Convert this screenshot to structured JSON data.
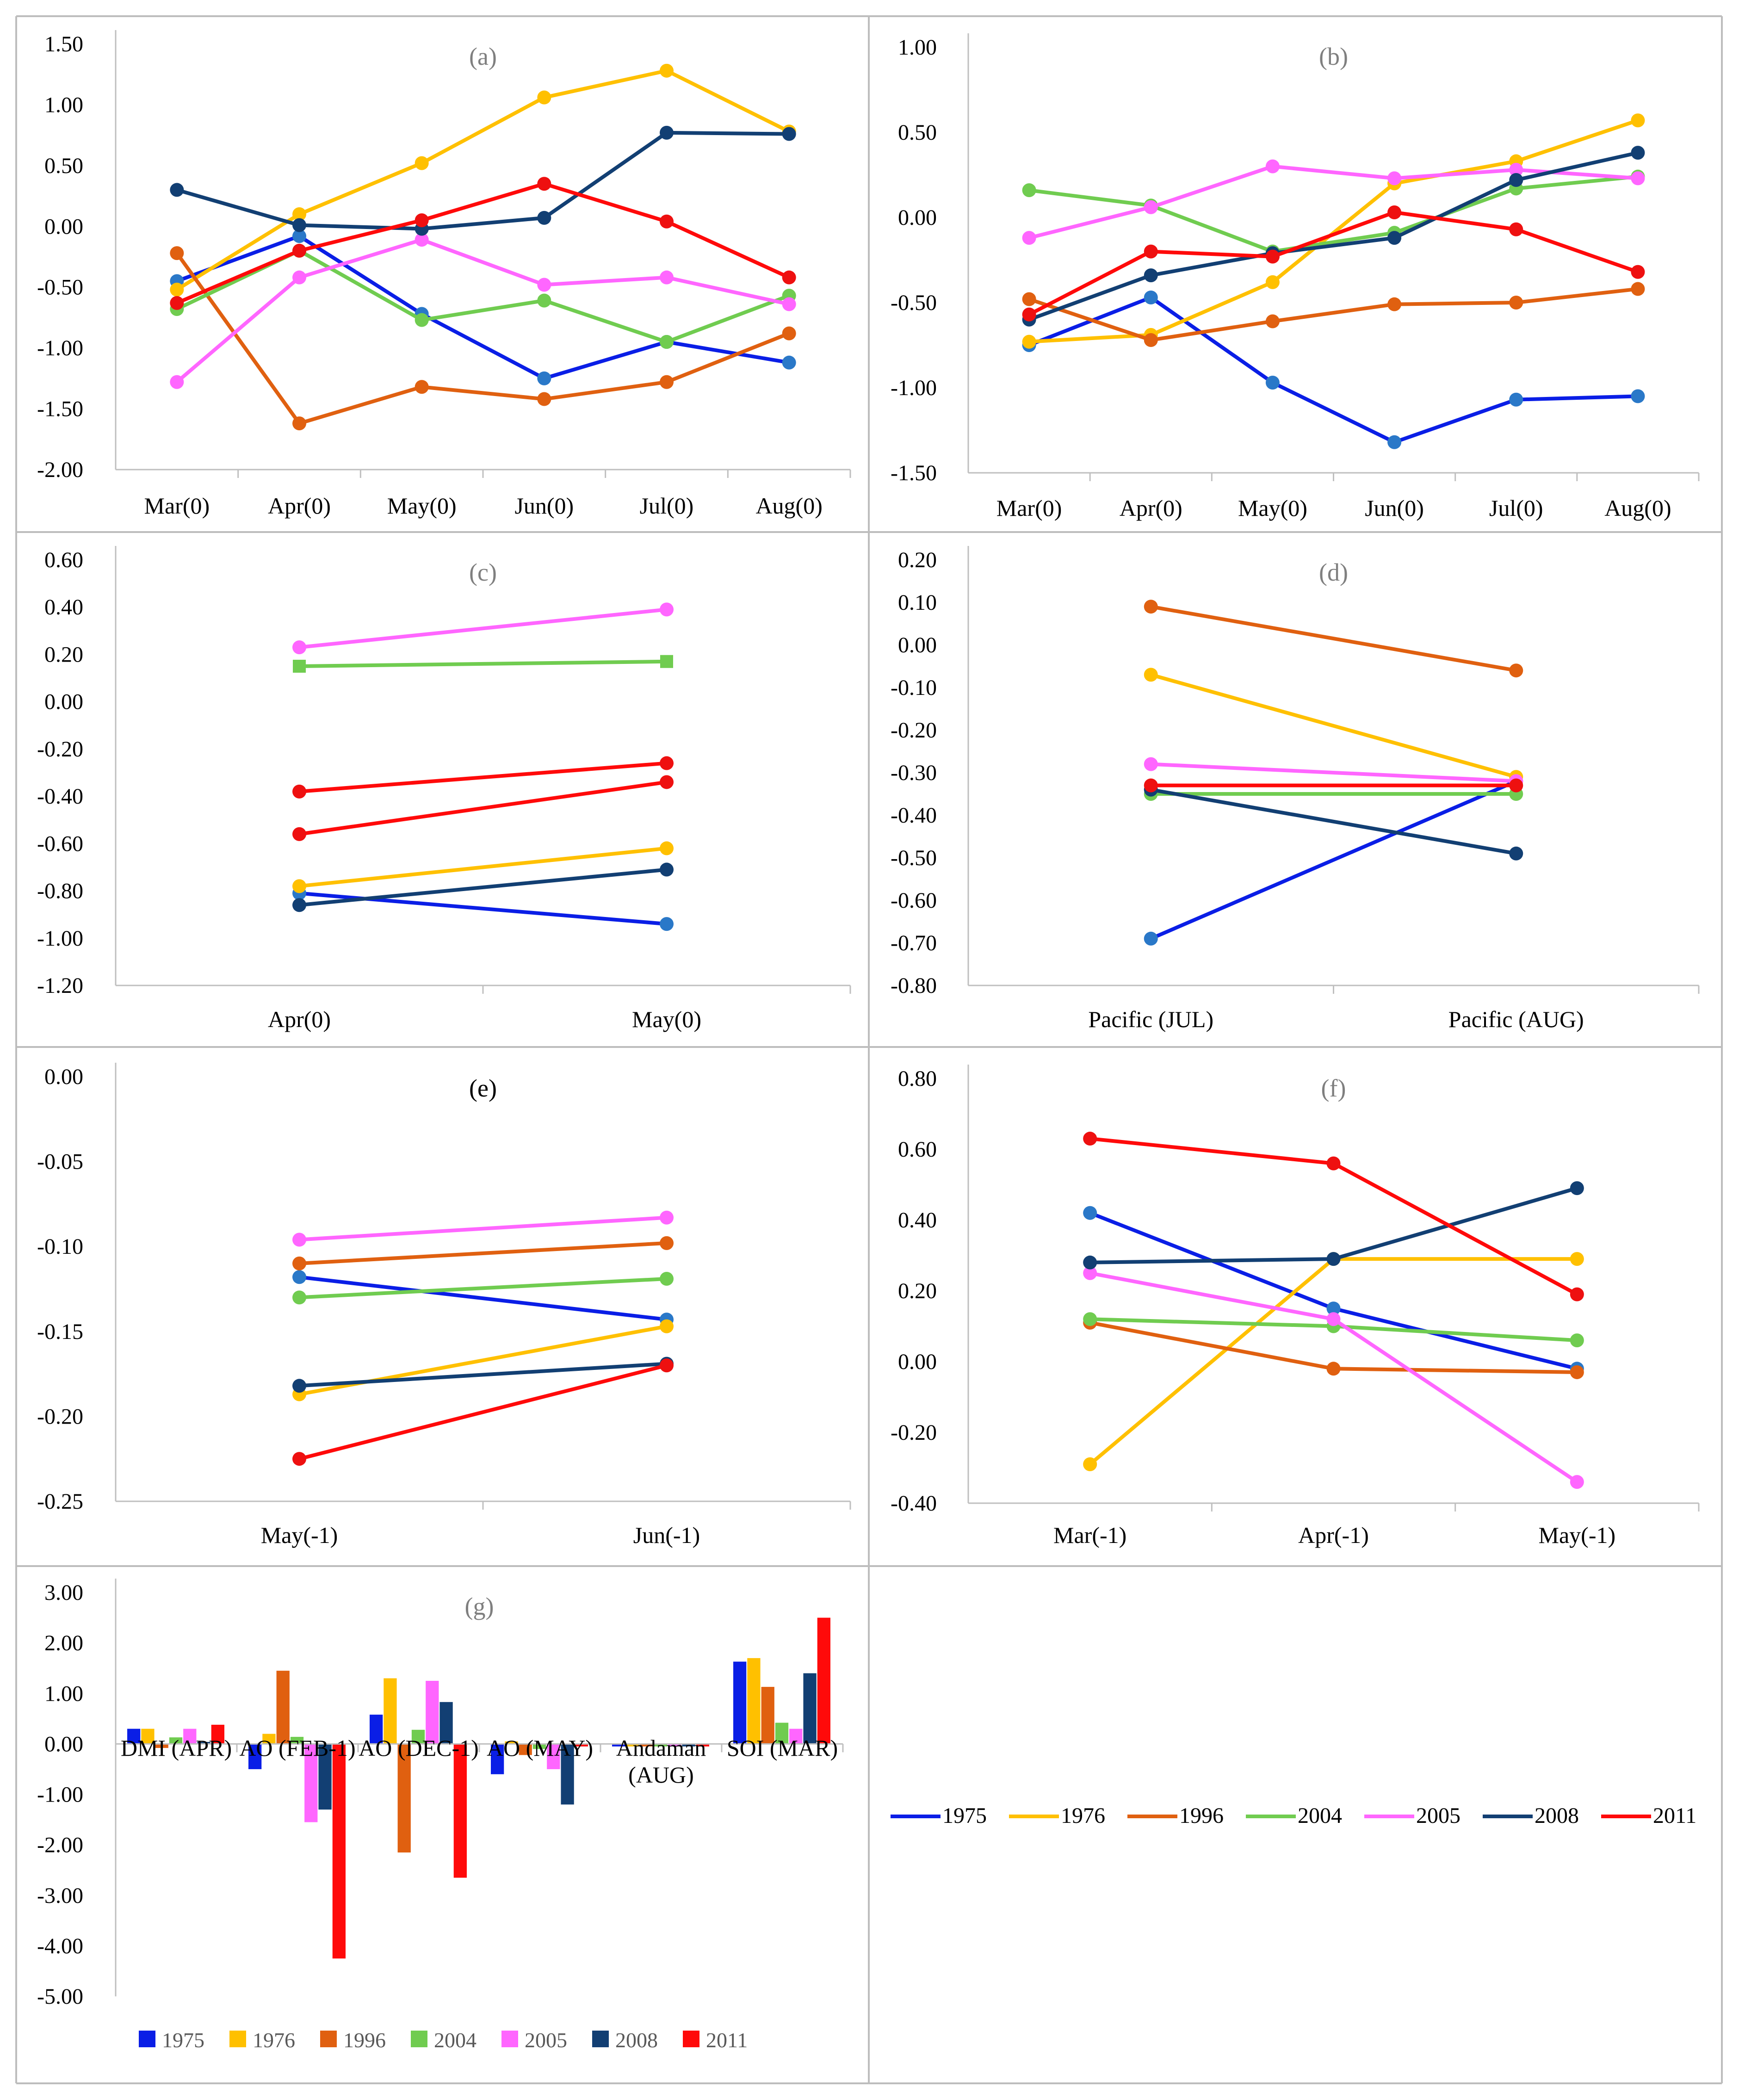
{
  "figure": {
    "colors": {
      "1975": "#0a1ee6",
      "1976": "#ffc000",
      "1996": "#e06010",
      "2004": "#70cc50",
      "2005": "#ff66ff",
      "2008": "#123f73",
      "2011": "#ff0a0a"
    },
    "marker_colors": {
      "1975": "#2a78c8",
      "1976": "#ffc000",
      "1996": "#e06010",
      "2004": "#70cc50",
      "2005": "#ff66ff",
      "2008": "#123f73",
      "2011": "#ee1010"
    },
    "shared_legend": {
      "entries": [
        "1975",
        "1976",
        "1996",
        "2004",
        "2005",
        "2008",
        "2011"
      ]
    }
  },
  "chart_data": [
    {
      "id": "a",
      "type": "line",
      "title": "(a)",
      "categories": [
        "Mar(0)",
        "Apr(0)",
        "May(0)",
        "Jun(0)",
        "Jul(0)",
        "Aug(0)"
      ],
      "ylim": [
        -2.0,
        1.5
      ],
      "yticks": [
        1.5,
        1.0,
        0.5,
        0.0,
        -0.5,
        -1.0,
        -1.5,
        -2.0
      ],
      "tick_labels": [
        "1.50",
        "1.00",
        "0.50",
        "0.00",
        "-0.50",
        "-1.00",
        "-1.50",
        "-2.00"
      ],
      "series": [
        {
          "name": "1975",
          "values": [
            -0.45,
            -0.08,
            -0.72,
            -1.25,
            -0.95,
            -1.12
          ]
        },
        {
          "name": "1976",
          "values": [
            -0.52,
            0.1,
            0.52,
            1.06,
            1.28,
            0.78
          ]
        },
        {
          "name": "1996",
          "values": [
            -0.22,
            -1.62,
            -1.32,
            -1.42,
            -1.28,
            -0.88
          ]
        },
        {
          "name": "2004",
          "values": [
            -0.68,
            -0.2,
            -0.77,
            -0.61,
            -0.95,
            -0.57
          ]
        },
        {
          "name": "2005",
          "values": [
            -1.28,
            -0.42,
            -0.11,
            -0.48,
            -0.42,
            -0.64
          ]
        },
        {
          "name": "2008",
          "values": [
            0.3,
            0.01,
            -0.02,
            0.07,
            0.77,
            0.76
          ]
        },
        {
          "name": "2011",
          "values": [
            -0.63,
            -0.2,
            0.05,
            0.35,
            0.04,
            -0.42
          ]
        }
      ]
    },
    {
      "id": "b",
      "type": "line",
      "title": "(b)",
      "categories": [
        "Mar(0)",
        "Apr(0)",
        "May(0)",
        "Jun(0)",
        "Jul(0)",
        "Aug(0)"
      ],
      "ylim": [
        -1.5,
        1.0
      ],
      "yticks": [
        1.0,
        0.5,
        0.0,
        -0.5,
        -1.0,
        -1.5
      ],
      "tick_labels": [
        "1.00",
        "0.50",
        "0.00",
        "-0.50",
        "-1.00",
        "-1.50"
      ],
      "series": [
        {
          "name": "1975",
          "values": [
            -0.75,
            -0.47,
            -0.97,
            -1.32,
            -1.07,
            -1.05
          ]
        },
        {
          "name": "1976",
          "values": [
            -0.73,
            -0.69,
            -0.38,
            0.2,
            0.33,
            0.57
          ]
        },
        {
          "name": "1996",
          "values": [
            -0.48,
            -0.72,
            -0.61,
            -0.51,
            -0.5,
            -0.42
          ]
        },
        {
          "name": "2004",
          "values": [
            0.16,
            0.07,
            -0.2,
            -0.09,
            0.17,
            0.24
          ]
        },
        {
          "name": "2005",
          "values": [
            -0.12,
            0.06,
            0.3,
            0.23,
            0.28,
            0.23
          ]
        },
        {
          "name": "2008",
          "values": [
            -0.6,
            -0.34,
            -0.21,
            -0.12,
            0.22,
            0.38
          ]
        },
        {
          "name": "2011",
          "values": [
            -0.57,
            -0.2,
            -0.23,
            0.03,
            -0.07,
            -0.32
          ]
        }
      ]
    },
    {
      "id": "c",
      "type": "line",
      "title": "(c)",
      "categories": [
        "Apr(0)",
        "May(0)"
      ],
      "ylim": [
        -1.2,
        0.6
      ],
      "yticks": [
        0.6,
        0.4,
        0.2,
        0.0,
        -0.2,
        -0.4,
        -0.6,
        -0.8,
        -1.0,
        -1.2
      ],
      "tick_labels": [
        "0.60",
        "0.40",
        "0.20",
        "0.00",
        "-0.20",
        "-0.40",
        "-0.60",
        "-0.80",
        "-1.00",
        "-1.20"
      ],
      "series": [
        {
          "name": "1975",
          "values": [
            -0.81,
            -0.94
          ]
        },
        {
          "name": "1976",
          "values": [
            -0.78,
            -0.62
          ]
        },
        {
          "name": "2004",
          "values": [
            0.15,
            0.17
          ],
          "marker": "square"
        },
        {
          "name": "2005",
          "values": [
            0.23,
            0.39
          ]
        },
        {
          "name": "2008",
          "values": [
            -0.86,
            -0.71
          ]
        },
        {
          "name": "2011",
          "values": [
            -0.38,
            -0.26
          ]
        },
        {
          "name": "2011",
          "values": [
            -0.56,
            -0.34
          ]
        }
      ]
    },
    {
      "id": "d",
      "type": "line",
      "title": "(d)",
      "categories": [
        "Pacific (JUL)",
        "Pacific (AUG)"
      ],
      "ylim": [
        -0.8,
        0.2
      ],
      "yticks": [
        0.2,
        0.1,
        0.0,
        -0.1,
        -0.2,
        -0.3,
        -0.4,
        -0.5,
        -0.6,
        -0.7,
        -0.8
      ],
      "tick_labels": [
        "0.20",
        "0.10",
        "0.00",
        "-0.10",
        "-0.20",
        "-0.30",
        "-0.40",
        "-0.50",
        "-0.60",
        "-0.70",
        "-0.80"
      ],
      "series": [
        {
          "name": "1975",
          "values": [
            -0.69,
            -0.32
          ]
        },
        {
          "name": "1976",
          "values": [
            -0.07,
            -0.31
          ]
        },
        {
          "name": "1996",
          "values": [
            0.09,
            -0.06
          ]
        },
        {
          "name": "2004",
          "values": [
            -0.35,
            -0.35
          ]
        },
        {
          "name": "2005",
          "values": [
            -0.28,
            -0.32
          ]
        },
        {
          "name": "2008",
          "values": [
            -0.34,
            -0.49
          ]
        },
        {
          "name": "2011",
          "values": [
            -0.33,
            -0.33
          ]
        }
      ]
    },
    {
      "id": "e",
      "type": "line",
      "title": "(e)",
      "categories": [
        "May(-1)",
        "Jun(-1)"
      ],
      "ylim": [
        -0.25,
        0.0
      ],
      "yticks": [
        0.0,
        -0.05,
        -0.1,
        -0.15,
        -0.2,
        -0.25
      ],
      "tick_labels": [
        "0.00",
        "-0.05",
        "-0.10",
        "-0.15",
        "-0.20",
        "-0.25"
      ],
      "series": [
        {
          "name": "1975",
          "values": [
            -0.118,
            -0.143
          ]
        },
        {
          "name": "1976",
          "values": [
            -0.187,
            -0.147
          ]
        },
        {
          "name": "1996",
          "values": [
            -0.11,
            -0.098
          ]
        },
        {
          "name": "2004",
          "values": [
            -0.13,
            -0.119
          ]
        },
        {
          "name": "2005",
          "values": [
            -0.096,
            -0.083
          ]
        },
        {
          "name": "2008",
          "values": [
            -0.182,
            -0.169
          ]
        },
        {
          "name": "2011",
          "values": [
            -0.225,
            -0.17
          ]
        }
      ]
    },
    {
      "id": "f",
      "type": "line",
      "title": "(f)",
      "categories": [
        "Mar(-1)",
        "Apr(-1)",
        "May(-1)"
      ],
      "ylim": [
        -0.4,
        0.8
      ],
      "yticks": [
        0.8,
        0.6,
        0.4,
        0.2,
        0.0,
        -0.2,
        -0.4
      ],
      "tick_labels": [
        "0.80",
        "0.60",
        "0.40",
        "0.20",
        "0.00",
        "-0.20",
        "-0.40"
      ],
      "series": [
        {
          "name": "1975",
          "values": [
            0.42,
            0.15,
            -0.02
          ]
        },
        {
          "name": "1976",
          "values": [
            -0.29,
            0.29,
            0.29
          ]
        },
        {
          "name": "1996",
          "values": [
            0.11,
            -0.02,
            -0.03
          ]
        },
        {
          "name": "2004",
          "values": [
            0.12,
            0.1,
            0.06
          ]
        },
        {
          "name": "2005",
          "values": [
            0.25,
            0.12,
            -0.34
          ]
        },
        {
          "name": "2008",
          "values": [
            0.28,
            0.29,
            0.49
          ]
        },
        {
          "name": "2011",
          "values": [
            0.63,
            0.56,
            0.19
          ]
        }
      ]
    },
    {
      "id": "g",
      "type": "bar",
      "title": "(g)",
      "categories": [
        "DMI (APR)",
        "AO (FEB-1)",
        "AO (DEC-1)",
        "AO (MAY)",
        "Andaman (AUG)",
        "SOI (MAR)"
      ],
      "ylim": [
        -5.0,
        3.0
      ],
      "yticks": [
        3.0,
        2.0,
        1.0,
        0.0,
        -1.0,
        -2.0,
        -3.0,
        -4.0,
        -5.0
      ],
      "tick_labels": [
        "3.00",
        "2.00",
        "1.00",
        "0.00",
        "-1.00",
        "-2.00",
        "-3.00",
        "-4.00",
        "-5.00"
      ],
      "legend": [
        "1975",
        "1976",
        "1996",
        "2004",
        "2005",
        "2008",
        "2011"
      ],
      "series": [
        {
          "name": "1975",
          "values": [
            0.3,
            -0.5,
            0.58,
            -0.6,
            -0.05,
            1.63
          ]
        },
        {
          "name": "1976",
          "values": [
            0.3,
            0.2,
            1.3,
            0.05,
            -0.05,
            1.7
          ]
        },
        {
          "name": "1996",
          "values": [
            -0.08,
            1.45,
            -2.15,
            -0.22,
            -0.05,
            1.13
          ]
        },
        {
          "name": "2004",
          "values": [
            0.13,
            0.14,
            0.28,
            -0.1,
            -0.05,
            0.42
          ]
        },
        {
          "name": "2005",
          "values": [
            0.3,
            -1.55,
            1.25,
            -0.5,
            -0.05,
            0.3
          ]
        },
        {
          "name": "2008",
          "values": [
            0.04,
            -1.3,
            0.83,
            -1.2,
            -0.05,
            1.4
          ]
        },
        {
          "name": "2011",
          "values": [
            0.38,
            -4.25,
            -2.65,
            -0.05,
            -0.05,
            2.5
          ]
        }
      ]
    }
  ]
}
